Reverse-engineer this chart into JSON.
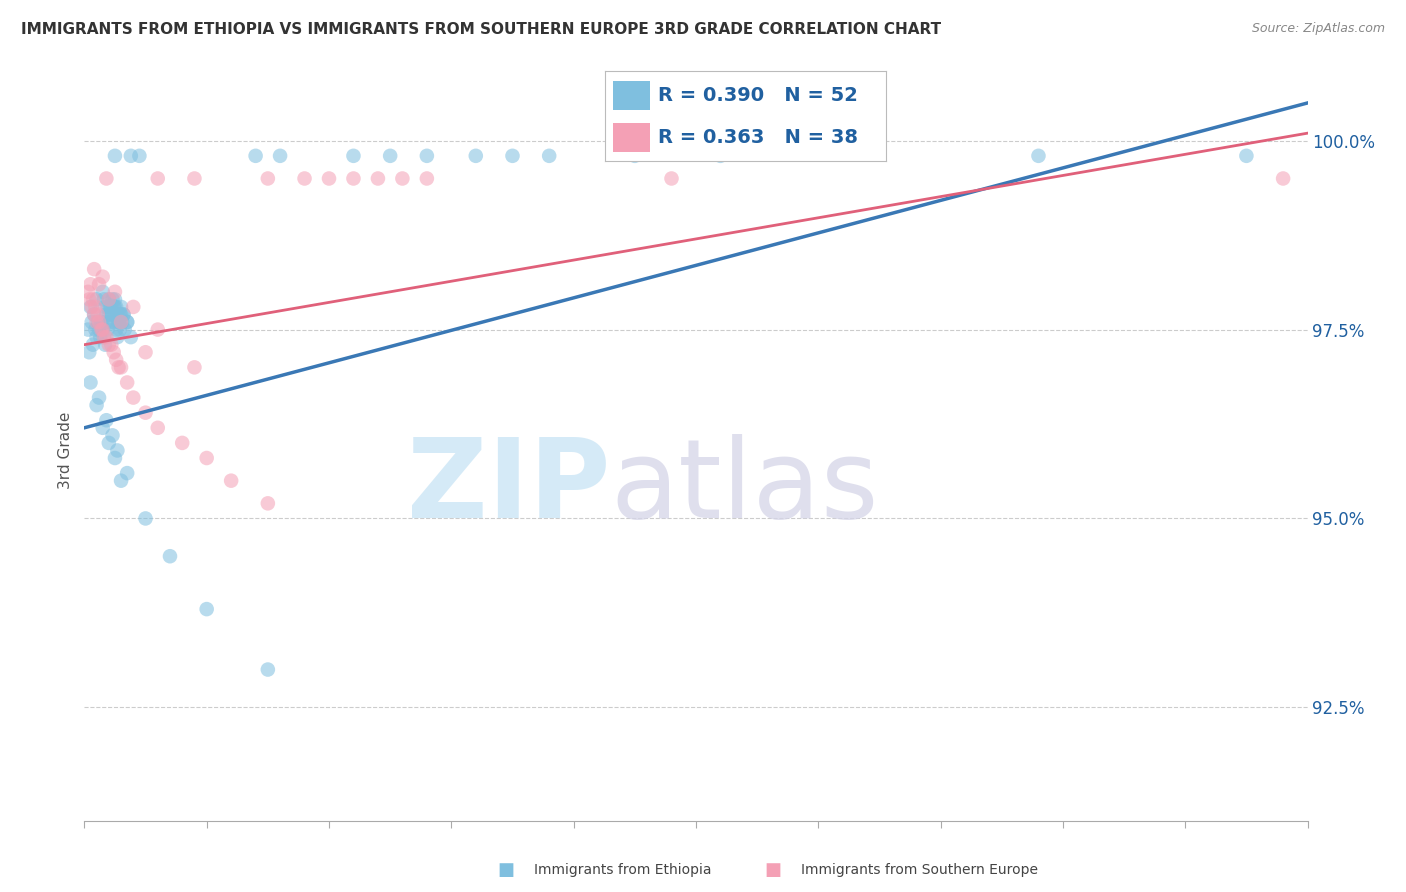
{
  "title": "IMMIGRANTS FROM ETHIOPIA VS IMMIGRANTS FROM SOUTHERN EUROPE 3RD GRADE CORRELATION CHART",
  "source": "Source: ZipAtlas.com",
  "ylabel": "3rd Grade",
  "ytick_vals": [
    92.5,
    95.0,
    97.5,
    100.0
  ],
  "ytick_labels": [
    "92.5%",
    "95.0%",
    "97.5%",
    "100.0%"
  ],
  "xlim": [
    0.0,
    100.0
  ],
  "ylim": [
    91.0,
    100.8
  ],
  "legend_r1": "R = 0.390",
  "legend_n1": "N = 52",
  "legend_r2": "R = 0.363",
  "legend_n2": "N = 38",
  "blue_color": "#7fbfdf",
  "blue_line_color": "#3a78b5",
  "pink_color": "#f4a0b5",
  "pink_line_color": "#e0607a",
  "legend_text_color": "#2060a0",
  "background_color": "#ffffff",
  "grid_color": "#cccccc",
  "scatter_blue_x": [
    0.3,
    0.4,
    0.5,
    0.6,
    0.7,
    0.8,
    0.9,
    1.0,
    1.0,
    1.1,
    1.2,
    1.3,
    1.4,
    1.5,
    1.6,
    1.7,
    1.8,
    1.9,
    2.0,
    2.1,
    2.2,
    2.3,
    2.4,
    2.5,
    2.6,
    2.7,
    2.8,
    2.9,
    3.0,
    3.1,
    3.2,
    3.3,
    3.5,
    3.8,
    1.5,
    1.6,
    1.7,
    1.8,
    1.9,
    2.0,
    2.1,
    2.2,
    2.3,
    2.4,
    2.5,
    2.6,
    2.7,
    2.8,
    2.9,
    3.0,
    3.2,
    3.5
  ],
  "scatter_blue_y": [
    97.5,
    97.2,
    97.8,
    97.6,
    97.3,
    97.7,
    97.5,
    97.4,
    97.9,
    97.6,
    97.5,
    97.4,
    97.6,
    97.5,
    97.4,
    97.3,
    97.6,
    97.5,
    97.7,
    97.6,
    97.8,
    97.7,
    97.6,
    97.8,
    97.5,
    97.4,
    97.6,
    97.5,
    97.7,
    97.6,
    97.7,
    97.5,
    97.6,
    97.4,
    98.0,
    97.9,
    97.8,
    97.7,
    97.8,
    97.9,
    97.8,
    97.7,
    97.9,
    97.8,
    97.9,
    97.8,
    97.7,
    97.6,
    97.7,
    97.8,
    97.7,
    97.6
  ],
  "scatter_blue_x2": [
    0.5,
    1.0,
    1.5,
    2.0,
    2.5,
    3.0,
    5.0,
    7.0,
    10.0,
    15.0,
    1.2,
    1.8,
    2.3,
    2.7,
    3.5
  ],
  "scatter_blue_y2": [
    96.8,
    96.5,
    96.2,
    96.0,
    95.8,
    95.5,
    95.0,
    94.5,
    93.8,
    93.0,
    96.6,
    96.3,
    96.1,
    95.9,
    95.6
  ],
  "scatter_pink_x": [
    0.3,
    0.4,
    0.5,
    0.6,
    0.7,
    0.8,
    0.9,
    1.0,
    1.1,
    1.2,
    1.4,
    1.5,
    1.6,
    1.8,
    2.0,
    2.2,
    2.4,
    2.6,
    2.8,
    3.0,
    3.5,
    4.0,
    5.0,
    6.0,
    8.0,
    10.0,
    12.0,
    15.0
  ],
  "scatter_pink_y": [
    98.0,
    97.9,
    98.1,
    97.8,
    97.9,
    97.7,
    97.8,
    97.6,
    97.7,
    97.6,
    97.5,
    97.5,
    97.4,
    97.4,
    97.3,
    97.3,
    97.2,
    97.1,
    97.0,
    97.0,
    96.8,
    96.6,
    96.4,
    96.2,
    96.0,
    95.8,
    95.5,
    95.2
  ],
  "scatter_pink_x2": [
    1.5,
    2.5,
    4.0,
    6.0,
    9.0,
    0.8,
    1.2,
    2.0,
    3.0,
    5.0
  ],
  "scatter_pink_y2": [
    98.2,
    98.0,
    97.8,
    97.5,
    97.0,
    98.3,
    98.1,
    97.9,
    97.6,
    97.2
  ],
  "blue_trendline_x": [
    0.0,
    100.0
  ],
  "blue_trendline_y": [
    96.2,
    100.5
  ],
  "pink_trendline_x": [
    0.0,
    100.0
  ],
  "pink_trendline_y": [
    97.3,
    100.1
  ],
  "xtick_positions": [
    0,
    10,
    20,
    30,
    40,
    50,
    60,
    70,
    80,
    90,
    100
  ],
  "bottom_legend_label1": "Immigrants from Ethiopia",
  "bottom_legend_label2": "Immigrants from Southern Europe"
}
